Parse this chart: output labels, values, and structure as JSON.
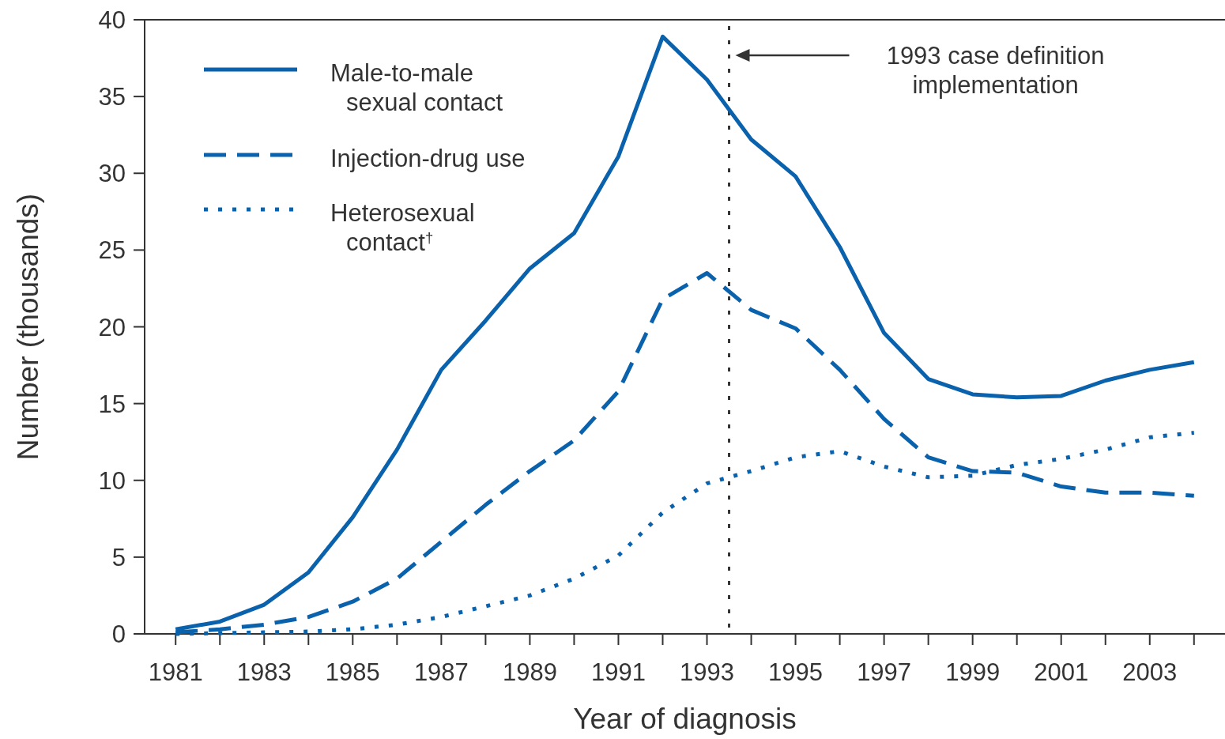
{
  "chart_data": {
    "type": "line",
    "xlabel": "Year of diagnosis",
    "ylabel": "Number (thousands)",
    "x": [
      1981,
      1982,
      1983,
      1984,
      1985,
      1986,
      1987,
      1988,
      1989,
      1990,
      1991,
      1992,
      1993,
      1994,
      1995,
      1996,
      1997,
      1998,
      1999,
      2000,
      2001,
      2002,
      2003,
      2004
    ],
    "series": [
      {
        "name": "Male-to-male\nsexual contact",
        "color": "#0a62ad",
        "line_style": "solid",
        "values": [
          0.3,
          0.8,
          1.9,
          4.0,
          7.6,
          12.0,
          17.2,
          20.4,
          23.8,
          26.1,
          31.1,
          38.9,
          36.1,
          32.2,
          29.8,
          25.2,
          19.6,
          16.6,
          15.6,
          15.4,
          15.5,
          16.5,
          17.2,
          17.7
        ]
      },
      {
        "name": "Injection-drug use",
        "color": "#0a62ad",
        "line_style": "dashed",
        "values": [
          0.1,
          0.3,
          0.6,
          1.1,
          2.1,
          3.6,
          6.0,
          8.4,
          10.6,
          12.6,
          15.8,
          21.8,
          23.5,
          21.1,
          19.9,
          17.2,
          14.0,
          11.5,
          10.6,
          10.5,
          9.6,
          9.2,
          9.2,
          9.0
        ]
      },
      {
        "name": "Heterosexual\ncontact$^{†}$",
        "color": "#0a62ad",
        "line_style": "dotted",
        "values": [
          0.0,
          0.05,
          0.1,
          0.15,
          0.3,
          0.6,
          1.1,
          1.8,
          2.5,
          3.6,
          5.1,
          7.9,
          9.8,
          10.6,
          11.5,
          11.9,
          10.9,
          10.2,
          10.3,
          11.0,
          11.4,
          12.0,
          12.8,
          13.1
        ]
      }
    ],
    "xlim": [
      1980.3,
      2004.7
    ],
    "ylim": [
      0,
      40
    ],
    "xticks": [
      1981,
      {
        "value": 1982,
        "label": null
      },
      1983,
      {
        "value": 1984,
        "label": null
      },
      1985,
      {
        "value": 1986,
        "label": null
      },
      1987,
      {
        "value": 1988,
        "label": null
      },
      1989,
      {
        "value": 1990,
        "label": null
      },
      1991,
      {
        "value": 1992,
        "label": null
      },
      1993,
      {
        "value": 1994,
        "label": null
      },
      1995,
      {
        "value": 1996,
        "label": null
      },
      1997,
      {
        "value": 1998,
        "label": null
      },
      1999,
      {
        "value": 2000,
        "label": null
      },
      2001,
      {
        "value": 2002,
        "label": null
      },
      2003,
      {
        "value": 2004,
        "label": null
      }
    ],
    "yticks": [
      0,
      5,
      10,
      15,
      20,
      25,
      30,
      35,
      40
    ],
    "ref_lines": [
      {
        "axis": "x",
        "value": 1993.5,
        "color": "#333333",
        "line_style": "dotted"
      }
    ],
    "annotations": [
      "1993 case definition\nimplementation"
    ],
    "legend": "top left",
    "grid": false,
    "marker": "none"
  }
}
